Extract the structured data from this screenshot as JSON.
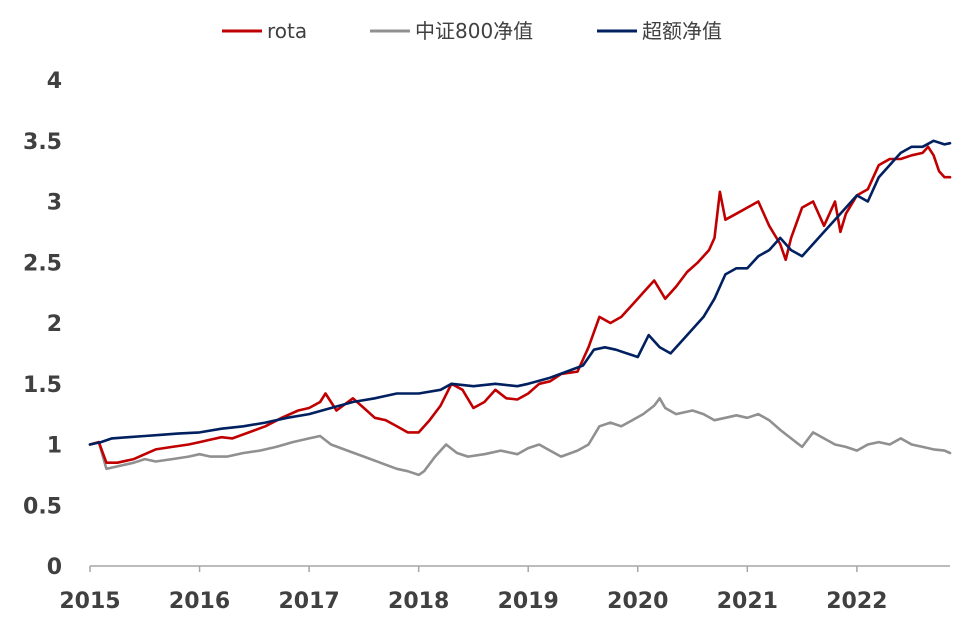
{
  "chart_data": {
    "type": "line",
    "title": "",
    "xlabel": "",
    "ylabel": "",
    "xlim": [
      2015,
      2022.85
    ],
    "ylim": [
      0,
      4
    ],
    "x_ticks": [
      2015,
      2016,
      2017,
      2018,
      2019,
      2020,
      2021,
      2022
    ],
    "x_tick_labels": [
      "2015",
      "2016",
      "2017",
      "2018",
      "2019",
      "2020",
      "2021",
      "2022"
    ],
    "y_ticks": [
      0,
      0.5,
      1,
      1.5,
      2,
      2.5,
      3,
      3.5,
      4
    ],
    "y_tick_labels": [
      "0",
      "0.5",
      "1",
      "1.5",
      "2",
      "2.5",
      "3",
      "3.5",
      "4"
    ],
    "grid": false,
    "legend": "top-center",
    "series": [
      {
        "name": "rota",
        "color": "#c00000",
        "x": [
          2015.0,
          2015.08,
          2015.15,
          2015.25,
          2015.4,
          2015.5,
          2015.6,
          2015.75,
          2015.9,
          2016.0,
          2016.1,
          2016.2,
          2016.3,
          2016.45,
          2016.6,
          2016.75,
          2016.9,
          2017.0,
          2017.1,
          2017.15,
          2017.25,
          2017.4,
          2017.5,
          2017.6,
          2017.7,
          2017.8,
          2017.9,
          2018.0,
          2018.1,
          2018.2,
          2018.3,
          2018.4,
          2018.5,
          2018.6,
          2018.7,
          2018.8,
          2018.9,
          2019.0,
          2019.1,
          2019.2,
          2019.3,
          2019.45,
          2019.55,
          2019.65,
          2019.75,
          2019.85,
          2019.95,
          2020.05,
          2020.15,
          2020.25,
          2020.35,
          2020.45,
          2020.55,
          2020.65,
          2020.7,
          2020.75,
          2020.8,
          2020.9,
          2021.0,
          2021.1,
          2021.2,
          2021.3,
          2021.35,
          2021.4,
          2021.5,
          2021.6,
          2021.7,
          2021.8,
          2021.85,
          2021.9,
          2022.0,
          2022.1,
          2022.2,
          2022.3,
          2022.4,
          2022.5,
          2022.6,
          2022.65,
          2022.7,
          2022.75,
          2022.8,
          2022.85
        ],
        "values": [
          1.0,
          1.02,
          0.85,
          0.85,
          0.88,
          0.92,
          0.96,
          0.98,
          1.0,
          1.02,
          1.04,
          1.06,
          1.05,
          1.1,
          1.15,
          1.22,
          1.28,
          1.3,
          1.35,
          1.42,
          1.28,
          1.38,
          1.3,
          1.22,
          1.2,
          1.15,
          1.1,
          1.1,
          1.2,
          1.32,
          1.5,
          1.45,
          1.3,
          1.35,
          1.45,
          1.38,
          1.37,
          1.42,
          1.5,
          1.52,
          1.58,
          1.6,
          1.8,
          2.05,
          2.0,
          2.05,
          2.15,
          2.25,
          2.35,
          2.2,
          2.3,
          2.42,
          2.5,
          2.6,
          2.7,
          3.08,
          2.85,
          2.9,
          2.95,
          3.0,
          2.8,
          2.65,
          2.52,
          2.7,
          2.95,
          3.0,
          2.8,
          3.0,
          2.75,
          2.9,
          3.05,
          3.1,
          3.3,
          3.35,
          3.35,
          3.38,
          3.4,
          3.45,
          3.38,
          3.25,
          3.2,
          3.2
        ]
      },
      {
        "name": "中证800净值",
        "color": "#909090",
        "x": [
          2015.0,
          2015.08,
          2015.15,
          2015.25,
          2015.4,
          2015.5,
          2015.6,
          2015.75,
          2015.9,
          2016.0,
          2016.1,
          2016.25,
          2016.4,
          2016.55,
          2016.7,
          2016.85,
          2017.0,
          2017.1,
          2017.2,
          2017.35,
          2017.5,
          2017.65,
          2017.8,
          2017.9,
          2018.0,
          2018.05,
          2018.15,
          2018.25,
          2018.35,
          2018.45,
          2018.6,
          2018.75,
          2018.9,
          2019.0,
          2019.1,
          2019.2,
          2019.3,
          2019.45,
          2019.55,
          2019.65,
          2019.75,
          2019.85,
          2019.95,
          2020.05,
          2020.15,
          2020.2,
          2020.25,
          2020.35,
          2020.5,
          2020.6,
          2020.7,
          2020.8,
          2020.9,
          2021.0,
          2021.1,
          2021.2,
          2021.3,
          2021.4,
          2021.5,
          2021.6,
          2021.7,
          2021.8,
          2021.9,
          2022.0,
          2022.1,
          2022.2,
          2022.3,
          2022.4,
          2022.5,
          2022.6,
          2022.7,
          2022.8,
          2022.85
        ],
        "values": [
          1.0,
          1.02,
          0.8,
          0.82,
          0.85,
          0.88,
          0.86,
          0.88,
          0.9,
          0.92,
          0.9,
          0.9,
          0.93,
          0.95,
          0.98,
          1.02,
          1.05,
          1.07,
          1.0,
          0.95,
          0.9,
          0.85,
          0.8,
          0.78,
          0.75,
          0.78,
          0.9,
          1.0,
          0.93,
          0.9,
          0.92,
          0.95,
          0.92,
          0.97,
          1.0,
          0.95,
          0.9,
          0.95,
          1.0,
          1.15,
          1.18,
          1.15,
          1.2,
          1.25,
          1.32,
          1.38,
          1.3,
          1.25,
          1.28,
          1.25,
          1.2,
          1.22,
          1.24,
          1.22,
          1.25,
          1.2,
          1.12,
          1.05,
          0.98,
          1.1,
          1.05,
          1.0,
          0.98,
          0.95,
          1.0,
          1.02,
          1.0,
          1.05,
          1.0,
          0.98,
          0.96,
          0.95,
          0.93
        ]
      },
      {
        "name": "超额净值",
        "color": "#002060",
        "x": [
          2015.0,
          2015.1,
          2015.2,
          2015.35,
          2015.5,
          2015.65,
          2015.8,
          2016.0,
          2016.2,
          2016.4,
          2016.6,
          2016.8,
          2017.0,
          2017.2,
          2017.4,
          2017.6,
          2017.8,
          2018.0,
          2018.2,
          2018.3,
          2018.5,
          2018.7,
          2018.9,
          2019.0,
          2019.2,
          2019.35,
          2019.5,
          2019.6,
          2019.7,
          2019.8,
          2019.9,
          2020.0,
          2020.1,
          2020.2,
          2020.3,
          2020.4,
          2020.5,
          2020.6,
          2020.7,
          2020.8,
          2020.9,
          2021.0,
          2021.1,
          2021.2,
          2021.3,
          2021.4,
          2021.5,
          2021.6,
          2021.7,
          2021.8,
          2021.9,
          2022.0,
          2022.1,
          2022.2,
          2022.3,
          2022.4,
          2022.5,
          2022.6,
          2022.7,
          2022.8,
          2022.85
        ],
        "values": [
          1.0,
          1.02,
          1.05,
          1.06,
          1.07,
          1.08,
          1.09,
          1.1,
          1.13,
          1.15,
          1.18,
          1.22,
          1.25,
          1.3,
          1.35,
          1.38,
          1.42,
          1.42,
          1.45,
          1.5,
          1.48,
          1.5,
          1.48,
          1.5,
          1.55,
          1.6,
          1.65,
          1.78,
          1.8,
          1.78,
          1.75,
          1.72,
          1.9,
          1.8,
          1.75,
          1.85,
          1.95,
          2.05,
          2.2,
          2.4,
          2.45,
          2.45,
          2.55,
          2.6,
          2.7,
          2.6,
          2.55,
          2.65,
          2.75,
          2.85,
          2.95,
          3.05,
          3.0,
          3.2,
          3.3,
          3.4,
          3.45,
          3.45,
          3.5,
          3.47,
          3.48
        ]
      }
    ]
  }
}
